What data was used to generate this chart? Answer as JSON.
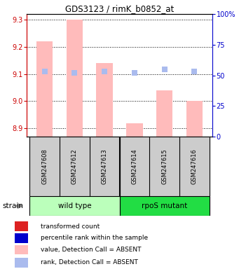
{
  "title": "GDS3123 / rimK_b0852_at",
  "samples": [
    "GSM247608",
    "GSM247612",
    "GSM247613",
    "GSM247614",
    "GSM247615",
    "GSM247616"
  ],
  "group_labels": [
    "wild type",
    "rpoS mutant"
  ],
  "group_colors": [
    "#bbffbb",
    "#22dd44"
  ],
  "ylim_left": [
    8.87,
    9.32
  ],
  "ylim_right": [
    0,
    100
  ],
  "yticks_left": [
    8.9,
    9.0,
    9.1,
    9.2,
    9.3
  ],
  "yticks_right": [
    0,
    25,
    50,
    75,
    100
  ],
  "ytick_labels_right": [
    "0",
    "25",
    "50",
    "75",
    "100%"
  ],
  "values": [
    9.22,
    9.3,
    9.14,
    8.92,
    9.04,
    9.0
  ],
  "ranks": [
    53,
    52,
    53,
    52,
    55,
    53
  ],
  "detection_call": [
    "ABSENT",
    "ABSENT",
    "ABSENT",
    "ABSENT",
    "ABSENT",
    "ABSENT"
  ],
  "bar_color_present": "#dd2222",
  "bar_color_absent": "#ffbbbb",
  "rank_color_present": "#0000cc",
  "rank_color_absent": "#aabbee",
  "bar_width": 0.55,
  "rank_marker_size": 28,
  "strain_label": "strain",
  "legend_items": [
    {
      "label": "transformed count",
      "color": "#dd2222"
    },
    {
      "label": "percentile rank within the sample",
      "color": "#0000cc"
    },
    {
      "label": "value, Detection Call = ABSENT",
      "color": "#ffbbbb"
    },
    {
      "label": "rank, Detection Call = ABSENT",
      "color": "#aabbee"
    }
  ],
  "left_tick_color": "#cc0000",
  "right_tick_color": "#0000cc",
  "sample_box_color": "#cccccc",
  "base_value": 8.87
}
